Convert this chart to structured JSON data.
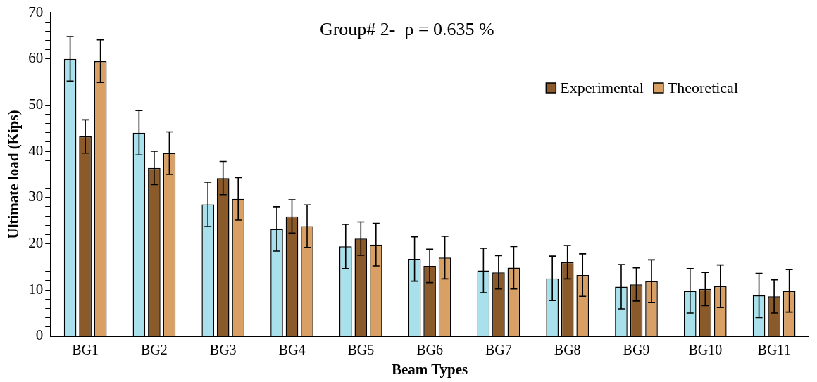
{
  "chart_data": {
    "type": "bar",
    "title": "Group# 2-  ρ = 0.635 %",
    "xlabel": "Beam Types",
    "ylabel": "Ultimate load (Kips)",
    "categories": [
      "BG1",
      "BG2",
      "BG3",
      "BG4",
      "BG5",
      "BG6",
      "BG7",
      "BG8",
      "BG9",
      "BG10",
      "BG11"
    ],
    "series": [
      {
        "color": "#a8e0ec",
        "values": [
          60,
          44,
          28.5,
          23.2,
          19.4,
          16.7,
          14.2,
          12.5,
          10.7,
          9.8,
          8.8
        ],
        "errors": [
          4.8,
          4.8,
          4.8,
          4.8,
          4.8,
          4.8,
          4.8,
          4.8,
          4.8,
          4.8,
          4.8
        ]
      },
      {
        "name": "Experimental",
        "color": "#8b5a2b",
        "values": [
          43.2,
          36.4,
          34.2,
          25.9,
          21.1,
          15.2,
          13.8,
          16,
          11.2,
          10.2,
          8.6
        ],
        "errors": [
          3.6,
          3.6,
          3.6,
          3.6,
          3.6,
          3.6,
          3.6,
          3.6,
          3.6,
          3.6,
          3.6
        ]
      },
      {
        "name": "Theoretical",
        "color": "#d9a066",
        "values": [
          59.5,
          39.6,
          29.7,
          23.8,
          19.8,
          17,
          14.8,
          13.2,
          11.9,
          10.8,
          9.8
        ],
        "errors": [
          4.6,
          4.6,
          4.6,
          4.6,
          4.6,
          4.6,
          4.6,
          4.6,
          4.6,
          4.6,
          4.6
        ]
      }
    ],
    "ylim": [
      0,
      70
    ],
    "yticks": [
      0,
      {
        "value": 2,
        "label": null
      },
      {
        "value": 4,
        "label": null
      },
      {
        "value": 6,
        "label": null
      },
      {
        "value": 8,
        "label": null
      },
      10,
      {
        "value": 12,
        "label": null
      },
      {
        "value": 14,
        "label": null
      },
      {
        "value": 16,
        "label": null
      },
      {
        "value": 18,
        "label": null
      },
      20,
      {
        "value": 22,
        "label": null
      },
      {
        "value": 24,
        "label": null
      },
      {
        "value": 26,
        "label": null
      },
      {
        "value": 28,
        "label": null
      },
      30,
      {
        "value": 32,
        "label": null
      },
      {
        "value": 34,
        "label": null
      },
      {
        "value": 36,
        "label": null
      },
      {
        "value": 38,
        "label": null
      },
      40,
      {
        "value": 42,
        "label": null
      },
      {
        "value": 44,
        "label": null
      },
      {
        "value": 46,
        "label": null
      },
      {
        "value": 48,
        "label": null
      },
      50,
      {
        "value": 52,
        "label": null
      },
      {
        "value": 54,
        "label": null
      },
      {
        "value": 56,
        "label": null
      },
      {
        "value": 58,
        "label": null
      },
      60,
      {
        "value": 62,
        "label": null
      },
      {
        "value": 64,
        "label": null
      },
      {
        "value": 66,
        "label": null
      },
      {
        "value": 68,
        "label": null
      },
      70
    ],
    "grid": false,
    "legend": "top right"
  }
}
